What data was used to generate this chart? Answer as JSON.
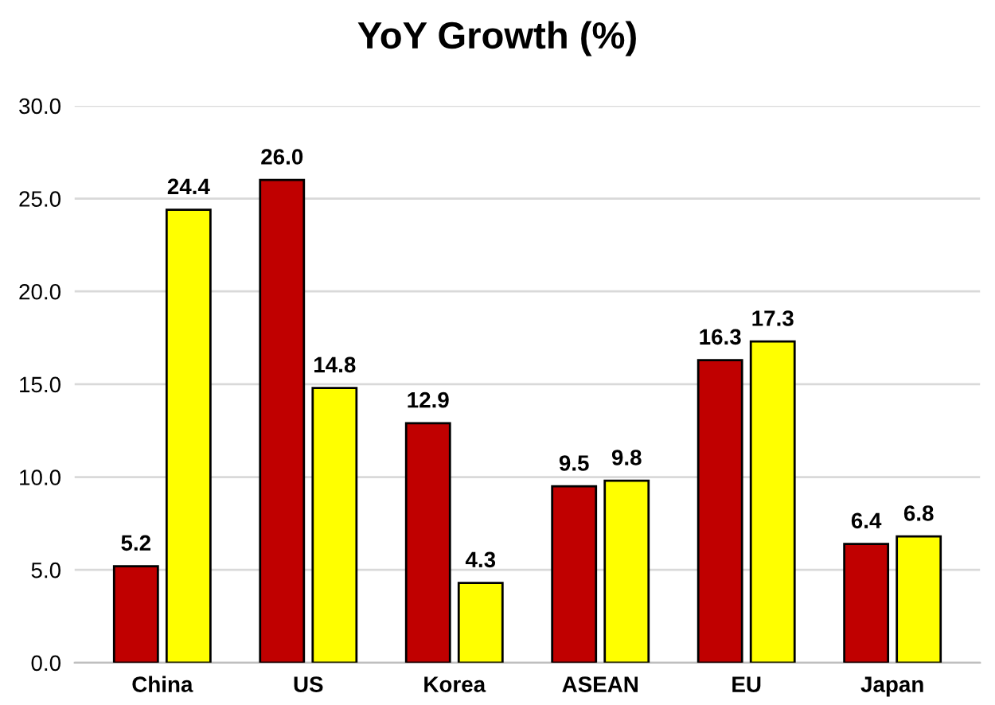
{
  "chart_data": {
    "type": "bar",
    "title": "YoY Growth (%)",
    "categories": [
      "China",
      "US",
      "Korea",
      "ASEAN",
      "EU",
      "Japan"
    ],
    "series": [
      {
        "color": "#c00000",
        "values": [
          5.2,
          26.0,
          12.9,
          9.5,
          16.3,
          6.4
        ],
        "value_labels": [
          "5.2",
          "26.0",
          "12.9",
          "9.5",
          "16.3",
          "6.4"
        ]
      },
      {
        "color": "#ffff00",
        "values": [
          24.4,
          14.8,
          4.3,
          9.8,
          17.3,
          6.8
        ],
        "value_labels": [
          "24.4",
          "14.8",
          "4.3",
          "9.8",
          "17.3",
          "6.8"
        ]
      }
    ],
    "ylim": [
      0,
      30
    ],
    "yticks": [
      {
        "value": 0,
        "label": "0.0"
      },
      {
        "value": 5,
        "label": "5.0"
      },
      {
        "value": 10,
        "label": "10.0"
      },
      {
        "value": 15,
        "label": "15.0"
      },
      {
        "value": 20,
        "label": "20.0"
      },
      {
        "value": 25,
        "label": "25.0"
      },
      {
        "value": 30,
        "label": "30.0"
      }
    ],
    "grid": "y"
  }
}
